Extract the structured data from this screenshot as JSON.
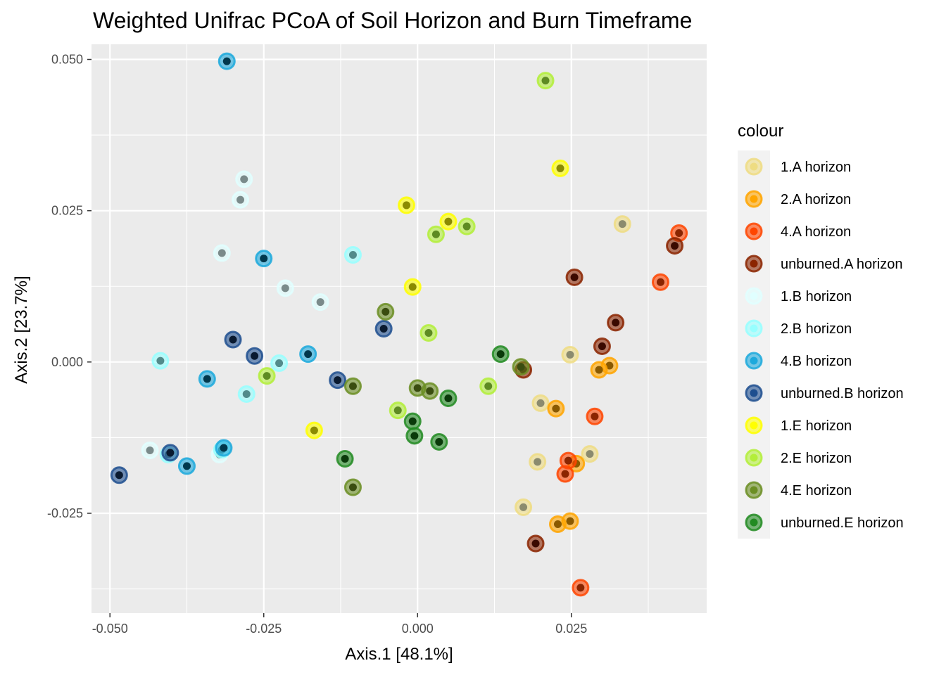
{
  "chart_data": {
    "type": "scatter",
    "title": "Weighted Unifrac PCoA of Soil Horizon and Burn Timeframe",
    "xlabel": "Axis.1   [48.1%]",
    "ylabel": "Axis.2   [23.7%]",
    "xlim": [
      -0.053,
      0.047
    ],
    "ylim": [
      -0.0415,
      0.0525
    ],
    "x_ticks": [
      -0.05,
      -0.025,
      0.0,
      0.025
    ],
    "x_tick_labels": [
      "-0.050",
      "-0.025",
      "0.000",
      "0.025"
    ],
    "y_ticks": [
      -0.025,
      0.0,
      0.025,
      0.05
    ],
    "y_tick_labels": [
      "-0.025",
      "0.000",
      "0.025",
      "0.050"
    ],
    "grid": true,
    "legend": {
      "title": "colour",
      "position": "right"
    },
    "series": [
      {
        "name": "1.A horizon",
        "color": "#EEDC82",
        "inner": "#8B8B6E",
        "points": [
          [
            0.0333,
            0.0228
          ],
          [
            0.0248,
            0.0012
          ],
          [
            0.02,
            -0.0068
          ],
          [
            0.028,
            -0.0152
          ],
          [
            0.0195,
            -0.0165
          ],
          [
            0.0172,
            -0.024
          ]
        ]
      },
      {
        "name": "2.A horizon",
        "color": "#FFA500",
        "inner": "#8B5A00",
        "points": [
          [
            0.0312,
            -0.0006
          ],
          [
            0.0295,
            -0.0013
          ],
          [
            0.0225,
            -0.0077
          ],
          [
            0.0258,
            -0.0168
          ],
          [
            0.0248,
            -0.0263
          ],
          [
            0.0228,
            -0.0268
          ]
        ]
      },
      {
        "name": "4.A horizon",
        "color": "#FF4500",
        "inner": "#8B2500",
        "points": [
          [
            0.0425,
            0.0213
          ],
          [
            0.0395,
            0.0132
          ],
          [
            0.0288,
            -0.009
          ],
          [
            0.0245,
            -0.0163
          ],
          [
            0.024,
            -0.0185
          ],
          [
            0.0265,
            -0.0373
          ]
        ]
      },
      {
        "name": "unburned.A horizon",
        "color": "#8B2500",
        "inner": "#3A0A00",
        "points": [
          [
            0.0418,
            0.0192
          ],
          [
            0.0255,
            0.014
          ],
          [
            0.0322,
            0.0065
          ],
          [
            0.03,
            0.0026
          ],
          [
            0.0172,
            -0.0013
          ],
          [
            0.0192,
            -0.03
          ]
        ]
      },
      {
        "name": "1.B horizon",
        "color": "#E0FFFF",
        "inner": "#7A8B8B",
        "points": [
          [
            -0.0282,
            0.0302
          ],
          [
            -0.0288,
            0.0268
          ],
          [
            -0.0318,
            0.018
          ],
          [
            -0.0215,
            0.0122
          ],
          [
            -0.0158,
            0.0099
          ],
          [
            -0.0435,
            -0.0146
          ],
          [
            -0.0322,
            -0.0153
          ]
        ]
      },
      {
        "name": "2.B horizon",
        "color": "#97FFFF",
        "inner": "#528B8B",
        "points": [
          [
            -0.0105,
            0.0177
          ],
          [
            -0.0225,
            -0.0002
          ],
          [
            -0.0418,
            0.0002
          ],
          [
            -0.0278,
            -0.0053
          ],
          [
            -0.0405,
            -0.0153
          ],
          [
            -0.0318,
            -0.0145
          ]
        ]
      },
      {
        "name": "4.B horizon",
        "color": "#1CA9DC",
        "inner": "#00384D",
        "points": [
          [
            -0.031,
            0.0497
          ],
          [
            -0.025,
            0.0171
          ],
          [
            -0.0178,
            0.0013
          ],
          [
            -0.0342,
            -0.0028
          ],
          [
            -0.0315,
            -0.0142
          ],
          [
            -0.0375,
            -0.0172
          ]
        ]
      },
      {
        "name": "unburned.B horizon",
        "color": "#1E4F8F",
        "inner": "#0A1A30",
        "points": [
          [
            -0.03,
            0.0037
          ],
          [
            -0.0265,
            0.001
          ],
          [
            -0.013,
            -0.003
          ],
          [
            -0.0055,
            0.0055
          ],
          [
            -0.0402,
            -0.015
          ],
          [
            -0.0485,
            -0.0187
          ]
        ]
      },
      {
        "name": "1.E horizon",
        "color": "#FFFF00",
        "inner": "#8B8B00",
        "points": [
          [
            0.0232,
            0.032
          ],
          [
            -0.0018,
            0.0259
          ],
          [
            0.005,
            0.0232
          ],
          [
            -0.0008,
            0.0124
          ],
          [
            -0.0168,
            -0.0113
          ]
        ]
      },
      {
        "name": "2.E horizon",
        "color": "#B3EE3A",
        "inner": "#5E8B22",
        "points": [
          [
            0.0208,
            0.0465
          ],
          [
            0.003,
            0.0211
          ],
          [
            0.008,
            0.0224
          ],
          [
            0.0018,
            0.0048
          ],
          [
            0.0115,
            -0.004
          ],
          [
            -0.0245,
            -0.0023
          ],
          [
            -0.0032,
            -0.008
          ]
        ]
      },
      {
        "name": "4.E horizon",
        "color": "#6B8E23",
        "inner": "#3A4D10",
        "points": [
          [
            -0.0052,
            0.0083
          ],
          [
            -0.0105,
            -0.004
          ],
          [
            0.0,
            -0.0043
          ],
          [
            0.002,
            -0.0048
          ],
          [
            0.0168,
            -0.0008
          ],
          [
            -0.0105,
            -0.0207
          ]
        ]
      },
      {
        "name": "unburned.E horizon",
        "color": "#228B22",
        "inner": "#0A3A0A",
        "points": [
          [
            0.0135,
            0.0013
          ],
          [
            0.005,
            -0.006
          ],
          [
            -0.0008,
            -0.0098
          ],
          [
            -0.0005,
            -0.0122
          ],
          [
            0.0035,
            -0.0132
          ],
          [
            -0.0118,
            -0.016
          ]
        ]
      }
    ]
  }
}
